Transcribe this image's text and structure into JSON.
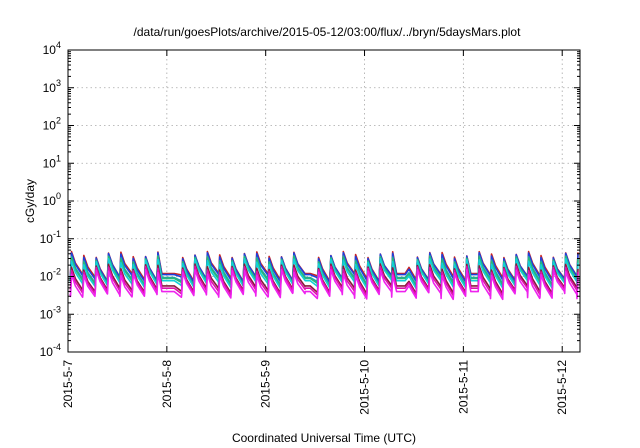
{
  "chart_data": {
    "type": "line",
    "title": "/data/run/goesPlots/archive/2015-05-12/03:00/flux/../bryn/5daysMars.plot",
    "xlabel": "Coordinated Universal Time (UTC)",
    "ylabel": "cGy/day",
    "x_range_days": [
      0,
      5.18
    ],
    "x_ticks": [
      {
        "label": "2015-5-7",
        "day": 0
      },
      {
        "label": "2015-5-8",
        "day": 1
      },
      {
        "label": "2015-5-9",
        "day": 2
      },
      {
        "label": "2015-5-10",
        "day": 3
      },
      {
        "label": "2015-5-11",
        "day": 4
      },
      {
        "label": "2015-5-12",
        "day": 5
      }
    ],
    "y_scale": "log",
    "y_range": [
      0.0001,
      10000
    ],
    "y_ticks": [
      {
        "mant": "10",
        "exp": "-4"
      },
      {
        "mant": "10",
        "exp": "-3"
      },
      {
        "mant": "10",
        "exp": "-2"
      },
      {
        "mant": "10",
        "exp": "-1"
      },
      {
        "mant": "10",
        "exp": "0"
      },
      {
        "mant": "10",
        "exp": "1"
      },
      {
        "mant": "10",
        "exp": "2"
      },
      {
        "mant": "10",
        "exp": "3"
      },
      {
        "mant": "10",
        "exp": "4"
      }
    ],
    "grid": true,
    "pattern": {
      "cycles_per_day": 8,
      "start_offset_days": 0.025,
      "peak_log10": -1.45,
      "decay_log10": 0.55,
      "variation_log10": 0.08
    },
    "quiet_intervals_days": [
      [
        0.95,
        1.08
      ],
      [
        2.4,
        2.52
      ],
      [
        3.32,
        3.42
      ],
      [
        4.05,
        4.15
      ]
    ],
    "series": [
      {
        "color": "#cc2222",
        "offset_log10": 0.03
      },
      {
        "color": "#1e40dd",
        "offset_log10": 0.0
      },
      {
        "color": "#22a0a8",
        "offset_log10": -0.08
      },
      {
        "color": "#27b878",
        "offset_log10": -0.1
      },
      {
        "color": "#11d0d8",
        "offset_log10": -0.16
      },
      {
        "color": "#8a1a3a",
        "offset_log10": -0.3
      },
      {
        "color": "#dd11aa",
        "offset_log10": -0.36
      },
      {
        "color": "#ee22ee",
        "offset_log10": -0.45
      }
    ]
  }
}
